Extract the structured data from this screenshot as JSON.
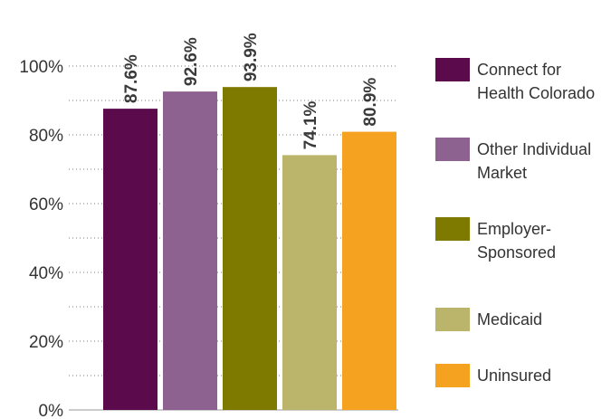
{
  "chart_data": {
    "type": "bar",
    "categories": [
      "Connect for Health Colorado",
      "Other Individual Market",
      "Employer-Sponsored",
      "Medicaid",
      "Uninsured"
    ],
    "values": [
      87.6,
      92.6,
      93.9,
      74.1,
      80.9
    ],
    "value_labels": [
      "87.6%",
      "92.6%",
      "93.9%",
      "74.1%",
      "80.9%"
    ],
    "colors": [
      "#5b0a4b",
      "#8d6190",
      "#7e7a00",
      "#bbb46b",
      "#f5a220"
    ],
    "ylim": [
      0,
      100
    ],
    "yticks": [
      {
        "value": 0,
        "label": "0%"
      },
      {
        "value": 20,
        "label": "20%"
      },
      {
        "value": 40,
        "label": "40%"
      },
      {
        "value": 60,
        "label": "60%"
      },
      {
        "value": 80,
        "label": "80%"
      },
      {
        "value": 100,
        "label": "100%"
      }
    ],
    "minor_yticks": [
      10,
      30,
      50,
      70,
      90
    ],
    "grid": true,
    "legend": "right"
  }
}
